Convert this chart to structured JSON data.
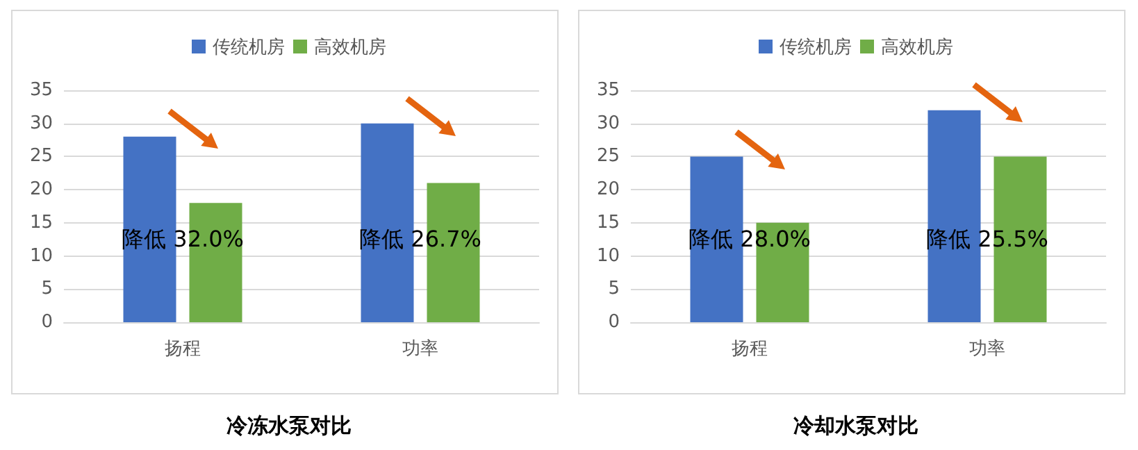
{
  "chart_data": [
    {
      "type": "bar",
      "title": "冷冻水泵对比",
      "categories": [
        "扬程",
        "功率"
      ],
      "series": [
        {
          "name": "传统机房",
          "color": "#4472c4",
          "values": [
            28,
            30
          ]
        },
        {
          "name": "高效机房",
          "color": "#70ad47",
          "values": [
            18,
            21
          ]
        }
      ],
      "annotations": [
        "降低 32.0%",
        "降低 26.7%"
      ],
      "ylim": [
        0,
        35
      ],
      "yticks": [
        0,
        5,
        10,
        15,
        20,
        25,
        30,
        35
      ],
      "grid": "y",
      "legend": "top"
    },
    {
      "type": "bar",
      "title": "冷却水泵对比",
      "categories": [
        "扬程",
        "功率"
      ],
      "series": [
        {
          "name": "传统机房",
          "color": "#4472c4",
          "values": [
            25,
            32
          ]
        },
        {
          "name": "高效机房",
          "color": "#70ad47",
          "values": [
            15,
            25
          ]
        }
      ],
      "annotations": [
        "降低 28.0%",
        "降低 25.5%"
      ],
      "ylim": [
        0,
        35
      ],
      "yticks": [
        0,
        5,
        10,
        15,
        20,
        25,
        30,
        35
      ],
      "grid": "y",
      "legend": "top"
    }
  ]
}
